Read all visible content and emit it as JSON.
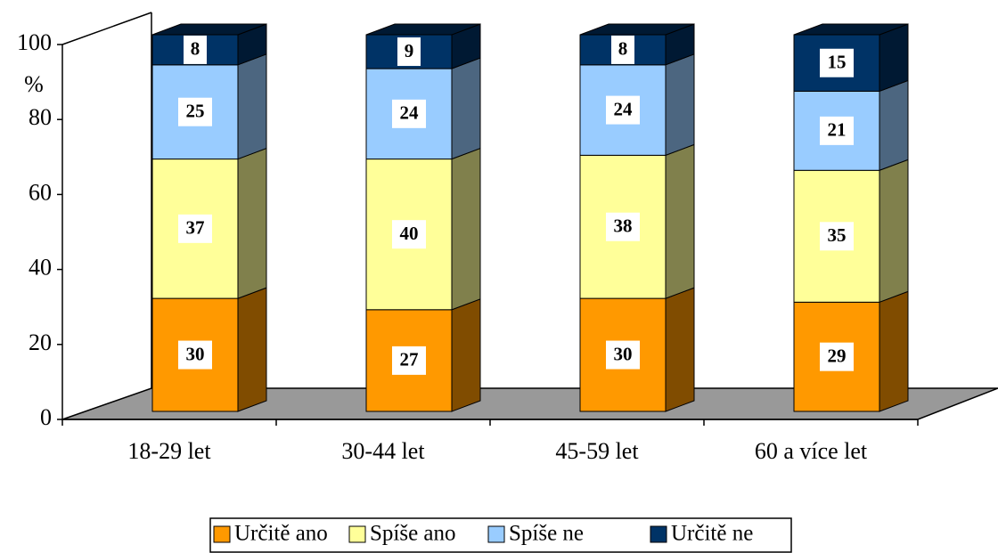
{
  "chart_data": {
    "type": "bar3d_stacked",
    "y_label": "%",
    "categories": [
      "18-29 let",
      "30-44 let",
      "45-59 let",
      "60 a více let"
    ],
    "series": [
      {
        "name": "Určitě ano",
        "color": "#FF9900",
        "side_color": "#804C00",
        "values": [
          30,
          27,
          30,
          29
        ]
      },
      {
        "name": "Spíše ano",
        "color": "#FFFF99",
        "side_color": "#80804C",
        "values": [
          37,
          40,
          38,
          35
        ]
      },
      {
        "name": "Spíše ne",
        "color": "#99CCFF",
        "side_color": "#4C6680",
        "values": [
          25,
          24,
          24,
          21
        ]
      },
      {
        "name": "Určitě ne",
        "color": "#003366",
        "side_color": "#001933",
        "values": [
          8,
          9,
          8,
          15
        ]
      }
    ],
    "ylim": [
      0,
      100
    ],
    "yticks": [
      0,
      20,
      40,
      60,
      80,
      100
    ]
  }
}
